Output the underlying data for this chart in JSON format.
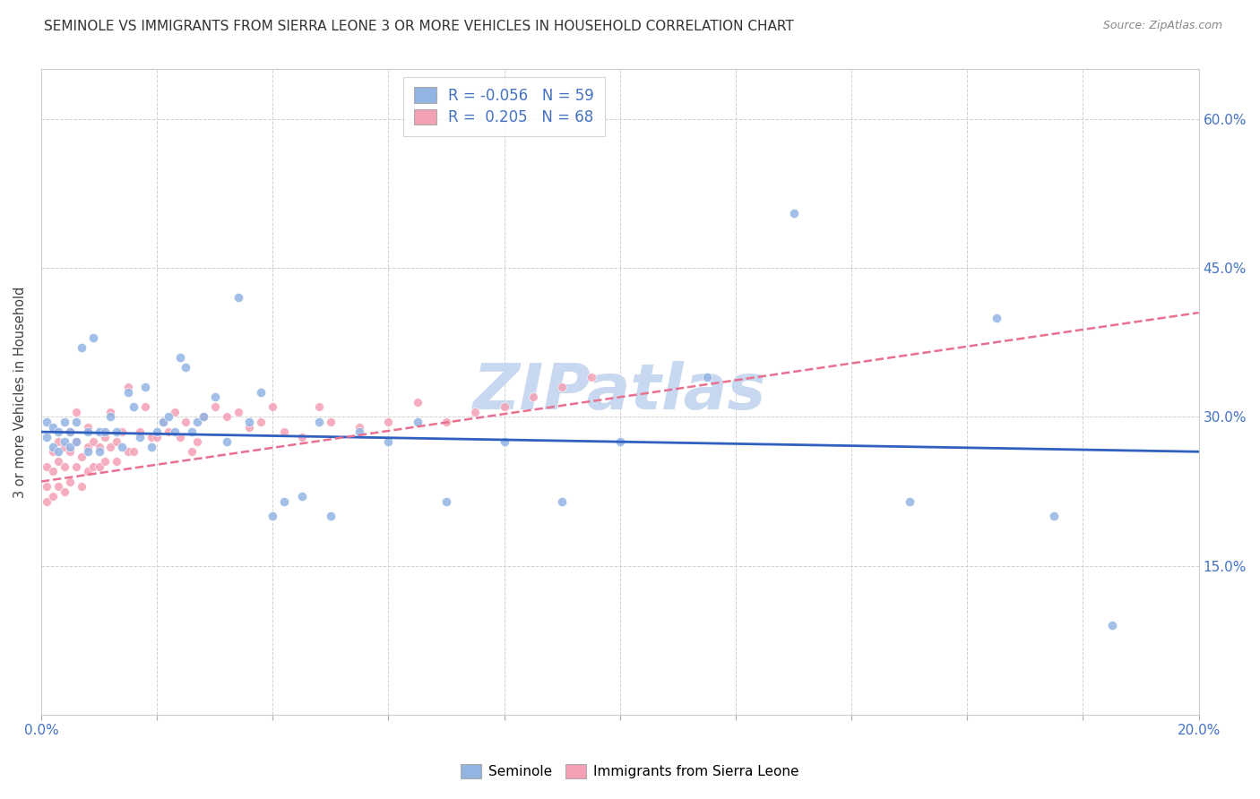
{
  "title": "SEMINOLE VS IMMIGRANTS FROM SIERRA LEONE 3 OR MORE VEHICLES IN HOUSEHOLD CORRELATION CHART",
  "source": "Source: ZipAtlas.com",
  "ylabel": "3 or more Vehicles in Household",
  "xlim": [
    0.0,
    0.2
  ],
  "ylim": [
    0.0,
    0.65
  ],
  "legend_blue_label_r": "R = -0.056",
  "legend_blue_label_n": "N = 59",
  "legend_pink_label_r": "R =  0.205",
  "legend_pink_label_n": "N = 68",
  "legend_seminole": "Seminole",
  "legend_immigrants": "Immigrants from Sierra Leone",
  "blue_color": "#92b4e3",
  "pink_color": "#f4a0b5",
  "blue_line_color": "#3060c0",
  "pink_line_color": "#e87090",
  "watermark": "ZIPatlas",
  "watermark_color": "#c8d8f0",
  "seminole_x": [
    0.001,
    0.001,
    0.002,
    0.002,
    0.003,
    0.003,
    0.004,
    0.004,
    0.005,
    0.005,
    0.006,
    0.006,
    0.007,
    0.008,
    0.008,
    0.009,
    0.01,
    0.01,
    0.011,
    0.012,
    0.013,
    0.014,
    0.015,
    0.016,
    0.017,
    0.018,
    0.019,
    0.02,
    0.021,
    0.022,
    0.023,
    0.024,
    0.025,
    0.026,
    0.027,
    0.028,
    0.03,
    0.032,
    0.034,
    0.036,
    0.038,
    0.04,
    0.042,
    0.045,
    0.048,
    0.05,
    0.055,
    0.06,
    0.065,
    0.07,
    0.08,
    0.09,
    0.1,
    0.115,
    0.13,
    0.15,
    0.165,
    0.175,
    0.185
  ],
  "seminole_y": [
    0.295,
    0.28,
    0.29,
    0.27,
    0.285,
    0.265,
    0.295,
    0.275,
    0.285,
    0.27,
    0.295,
    0.275,
    0.37,
    0.285,
    0.265,
    0.38,
    0.285,
    0.265,
    0.285,
    0.3,
    0.285,
    0.27,
    0.325,
    0.31,
    0.28,
    0.33,
    0.27,
    0.285,
    0.295,
    0.3,
    0.285,
    0.36,
    0.35,
    0.285,
    0.295,
    0.3,
    0.32,
    0.275,
    0.42,
    0.295,
    0.325,
    0.2,
    0.215,
    0.22,
    0.295,
    0.2,
    0.285,
    0.275,
    0.295,
    0.215,
    0.275,
    0.215,
    0.275,
    0.34,
    0.505,
    0.215,
    0.4,
    0.2,
    0.09
  ],
  "immigrants_x": [
    0.001,
    0.001,
    0.001,
    0.002,
    0.002,
    0.002,
    0.003,
    0.003,
    0.003,
    0.004,
    0.004,
    0.004,
    0.005,
    0.005,
    0.005,
    0.006,
    0.006,
    0.006,
    0.007,
    0.007,
    0.008,
    0.008,
    0.008,
    0.009,
    0.009,
    0.01,
    0.01,
    0.011,
    0.011,
    0.012,
    0.012,
    0.013,
    0.013,
    0.014,
    0.015,
    0.015,
    0.016,
    0.017,
    0.018,
    0.019,
    0.02,
    0.021,
    0.022,
    0.023,
    0.024,
    0.025,
    0.026,
    0.027,
    0.028,
    0.03,
    0.032,
    0.034,
    0.036,
    0.038,
    0.04,
    0.042,
    0.045,
    0.048,
    0.05,
    0.055,
    0.06,
    0.065,
    0.07,
    0.075,
    0.08,
    0.085,
    0.09,
    0.095
  ],
  "immigrants_y": [
    0.25,
    0.23,
    0.215,
    0.265,
    0.245,
    0.22,
    0.275,
    0.255,
    0.23,
    0.27,
    0.25,
    0.225,
    0.285,
    0.265,
    0.235,
    0.305,
    0.275,
    0.25,
    0.26,
    0.23,
    0.29,
    0.27,
    0.245,
    0.275,
    0.25,
    0.27,
    0.25,
    0.28,
    0.255,
    0.305,
    0.27,
    0.275,
    0.255,
    0.285,
    0.33,
    0.265,
    0.265,
    0.285,
    0.31,
    0.28,
    0.28,
    0.295,
    0.285,
    0.305,
    0.28,
    0.295,
    0.265,
    0.275,
    0.3,
    0.31,
    0.3,
    0.305,
    0.29,
    0.295,
    0.31,
    0.285,
    0.28,
    0.31,
    0.295,
    0.29,
    0.295,
    0.315,
    0.295,
    0.305,
    0.31,
    0.32,
    0.33,
    0.34
  ]
}
